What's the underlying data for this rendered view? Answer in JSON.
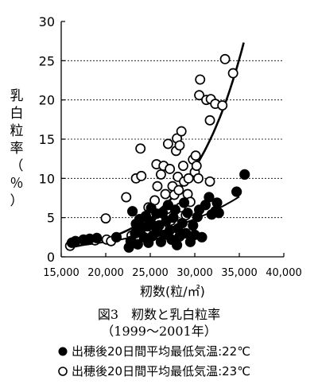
{
  "chart_data": {
    "type": "scatter",
    "xlabel": "籾数(粒/㎡)",
    "ylabel": "乳白粒率（％）",
    "xlim": [
      15000,
      40000
    ],
    "ylim": [
      0,
      30
    ],
    "xticks": [
      "15,000",
      "20,000",
      "25,000",
      "30,000",
      "35,000",
      "40,000"
    ],
    "yticks": [
      "0",
      "5",
      "10",
      "15",
      "20",
      "25",
      "30"
    ],
    "grid": "horizontal dashed",
    "series": [
      {
        "name": "出穂後20日間平均最低気温:22℃",
        "marker": "filled circle",
        "points": [
          [
            16200,
            1.8
          ],
          [
            16600,
            2.0
          ],
          [
            17500,
            2.2
          ],
          [
            18200,
            2.3
          ],
          [
            19000,
            2.4
          ],
          [
            21200,
            2.5
          ],
          [
            22600,
            1.2
          ],
          [
            22800,
            2.0
          ],
          [
            23000,
            1.8
          ],
          [
            23000,
            5.8
          ],
          [
            23300,
            3.0
          ],
          [
            23400,
            4.2
          ],
          [
            23600,
            1.6
          ],
          [
            23800,
            4.8
          ],
          [
            24000,
            3.6
          ],
          [
            24300,
            2.5
          ],
          [
            24500,
            5.2
          ],
          [
            24700,
            3.9
          ],
          [
            24800,
            1.8
          ],
          [
            25000,
            4.5
          ],
          [
            25100,
            6.2
          ],
          [
            25300,
            2.7
          ],
          [
            25500,
            3.9
          ],
          [
            25700,
            5.5
          ],
          [
            25800,
            3.2
          ],
          [
            26000,
            4.0
          ],
          [
            26200,
            1.9
          ],
          [
            26400,
            5.6
          ],
          [
            26600,
            2.8
          ],
          [
            26800,
            4.6
          ],
          [
            27000,
            6.6
          ],
          [
            27200,
            3.4
          ],
          [
            27400,
            2.2
          ],
          [
            27600,
            5.0
          ],
          [
            27800,
            6.0
          ],
          [
            28000,
            1.5
          ],
          [
            28100,
            3.6
          ],
          [
            28300,
            2.6
          ],
          [
            28600,
            4.3
          ],
          [
            28800,
            6.9
          ],
          [
            29000,
            3.0
          ],
          [
            29200,
            5.6
          ],
          [
            29500,
            1.9
          ],
          [
            29800,
            4.0
          ],
          [
            30000,
            2.8
          ],
          [
            30300,
            5.1
          ],
          [
            30500,
            6.0
          ],
          [
            30800,
            2.5
          ],
          [
            31200,
            6.6
          ],
          [
            31600,
            7.6
          ],
          [
            31900,
            5.4
          ],
          [
            32300,
            5.8
          ],
          [
            32500,
            6.9
          ],
          [
            32700,
            5.6
          ],
          [
            34700,
            8.3
          ],
          [
            35600,
            10.5
          ]
        ]
      },
      {
        "name": "出穂後20日間平均最低気温:23℃",
        "marker": "open circle",
        "points": [
          [
            16000,
            1.4
          ],
          [
            18800,
            2.1
          ],
          [
            20000,
            4.9
          ],
          [
            20100,
            2.2
          ],
          [
            20600,
            2.0
          ],
          [
            22300,
            7.6
          ],
          [
            22900,
            2.7
          ],
          [
            23400,
            10.0
          ],
          [
            23800,
            4.0
          ],
          [
            23900,
            13.8
          ],
          [
            24000,
            10.3
          ],
          [
            24300,
            3.3
          ],
          [
            24600,
            2.9
          ],
          [
            24800,
            6.3
          ],
          [
            25000,
            5.6
          ],
          [
            25200,
            2.6
          ],
          [
            25500,
            7.2
          ],
          [
            25700,
            11.8
          ],
          [
            25800,
            9.0
          ],
          [
            26000,
            4.5
          ],
          [
            26200,
            10.5
          ],
          [
            26300,
            3.6
          ],
          [
            26500,
            11.6
          ],
          [
            26700,
            8.0
          ],
          [
            26900,
            6.1
          ],
          [
            27000,
            14.4
          ],
          [
            27200,
            11.2
          ],
          [
            27300,
            4.6
          ],
          [
            27500,
            9.0
          ],
          [
            27700,
            7.9
          ],
          [
            27900,
            13.5
          ],
          [
            28000,
            15.1
          ],
          [
            28100,
            10.2
          ],
          [
            28200,
            8.5
          ],
          [
            28300,
            14.2
          ],
          [
            28400,
            6.3
          ],
          [
            28500,
            16.0
          ],
          [
            28700,
            11.6
          ],
          [
            28800,
            9.6
          ],
          [
            29000,
            5.3
          ],
          [
            29200,
            8.0
          ],
          [
            29300,
            10.0
          ],
          [
            29500,
            7.0
          ],
          [
            29800,
            12.4
          ],
          [
            30000,
            10.8
          ],
          [
            30100,
            12.9
          ],
          [
            30200,
            11.6
          ],
          [
            30400,
            10.0
          ],
          [
            30500,
            20.6
          ],
          [
            30600,
            22.6
          ],
          [
            31300,
            20.0
          ],
          [
            31700,
            9.6
          ],
          [
            31700,
            17.4
          ],
          [
            31800,
            20.1
          ],
          [
            32300,
            19.5
          ],
          [
            33100,
            19.3
          ],
          [
            33400,
            25.2
          ],
          [
            34300,
            23.4
          ]
        ]
      }
    ],
    "trend_lines": [
      {
        "series": "出穂後20日間平均最低気温:23℃",
        "shape": "exponential",
        "x_range": [
          16000,
          35500
        ],
        "a": 0.0932,
        "b": 0.00016
      },
      {
        "series": "出穂後20日間平均最低気温:22℃",
        "shape": "exponential",
        "x_range": [
          16000,
          35000
        ],
        "a": 0.2949,
        "b": 9.31e-05
      }
    ]
  },
  "caption": {
    "line1": "図3　籾数と乳白粒率",
    "line2": "（1999～2001年）"
  },
  "legend": [
    {
      "marker": "filled",
      "label": "出穂後20日間平均最低気温:22℃"
    },
    {
      "marker": "open",
      "label": "出穂後20日間平均最低気温:23℃"
    }
  ]
}
